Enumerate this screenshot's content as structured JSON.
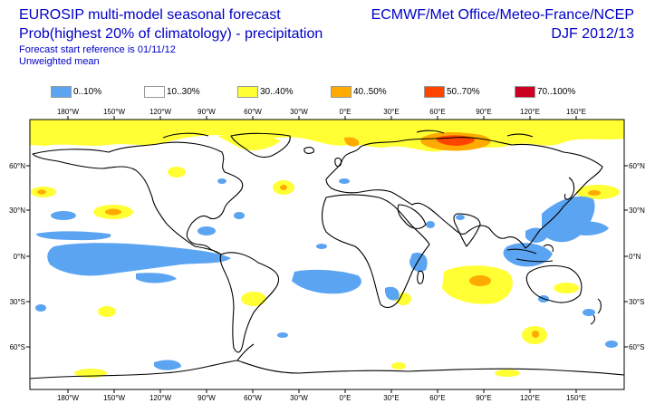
{
  "header": {
    "title_line1": "EUROSIP multi-model seasonal forecast",
    "title_line2": "Prob(highest 20% of climatology) - precipitation",
    "forecast_ref": "Forecast start reference is 01/11/12",
    "mean_type": "Unweighted mean",
    "organisations": "ECMWF/Met Office/Meteo-France/NCEP",
    "season": "DJF 2012/13"
  },
  "legend": [
    {
      "label": "0..10%",
      "color": "#5ba4f2"
    },
    {
      "label": "10..30%",
      "color": "#ffffff"
    },
    {
      "label": "30..40%",
      "color": "#ffff33"
    },
    {
      "label": "40..50%",
      "color": "#ffaa00"
    },
    {
      "label": "50..70%",
      "color": "#ff4400"
    },
    {
      "label": "70..100%",
      "color": "#cc0022"
    }
  ],
  "map": {
    "lon_ticks": [
      "180°W",
      "150°W",
      "120°W",
      "90°W",
      "60°W",
      "30°W",
      "0°E",
      "30°E",
      "60°E",
      "90°E",
      "120°E",
      "150°E"
    ],
    "lat_ticks": [
      "60°N",
      "30°N",
      "0°N",
      "30°S",
      "60°S"
    ],
    "land_color": "#ffffff",
    "coast_color": "#000000"
  }
}
